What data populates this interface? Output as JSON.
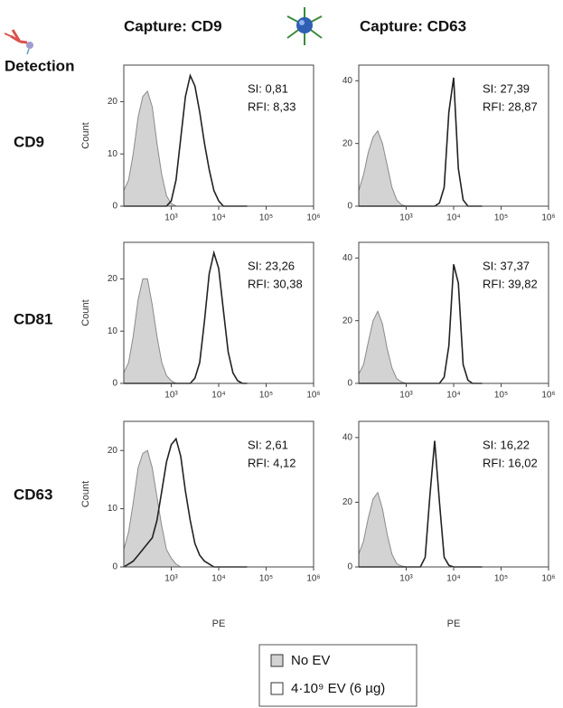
{
  "detection_label": "Detection",
  "column_titles": [
    "Capture: CD9",
    "Capture: CD63"
  ],
  "row_titles": [
    "CD9",
    "CD81",
    "CD63"
  ],
  "legend": [
    {
      "label": "No EV",
      "color": "#d3d3d3"
    },
    {
      "label": "4·10⁹ EV (6 µg)",
      "color": "#ffffff"
    }
  ],
  "chart_data": [
    {
      "type": "line",
      "ylabel": "Count",
      "xscale": "log",
      "xlim": [
        100,
        1000000
      ],
      "ylim": [
        0,
        27
      ],
      "yticks": [
        0,
        10,
        20
      ],
      "xticks": [
        {
          "value": 1000,
          "label": "10³"
        },
        {
          "value": 10000,
          "label": "10⁴"
        },
        {
          "value": 100000,
          "label": "10⁵"
        },
        {
          "value": 1000000,
          "label": "10⁶"
        }
      ],
      "annotations": [
        "SI: 0,81",
        "RFI: 8,33"
      ],
      "x": [
        100,
        126,
        158,
        200,
        251,
        316,
        398,
        501,
        631,
        794,
        1000,
        1259,
        1585,
        1995,
        2512,
        3162,
        3981,
        5012,
        6310,
        7943,
        10000,
        12589,
        15849,
        19953,
        25119,
        31623,
        39811
      ],
      "series": [
        {
          "color": "#d3d3d3",
          "area": true,
          "values": [
            3,
            5,
            10,
            17,
            21,
            22,
            19,
            12,
            6,
            2,
            0.5,
            0,
            0,
            0,
            0,
            0,
            0,
            0,
            0,
            0,
            0,
            0,
            0,
            0,
            0,
            0,
            0
          ]
        },
        {
          "color": "#222222",
          "area": false,
          "values": [
            0,
            0,
            0,
            0,
            0,
            0,
            0,
            0,
            0,
            0,
            1,
            5,
            13,
            21,
            25,
            23,
            18,
            12,
            7,
            3,
            1,
            0,
            0,
            0,
            0,
            0,
            0
          ]
        }
      ]
    },
    {
      "type": "line",
      "xscale": "log",
      "xlim": [
        100,
        1000000
      ],
      "ylim": [
        0,
        45
      ],
      "yticks": [
        0,
        20,
        40
      ],
      "xticks": [
        {
          "value": 1000,
          "label": "10³"
        },
        {
          "value": 10000,
          "label": "10⁴"
        },
        {
          "value": 100000,
          "label": "10⁵"
        },
        {
          "value": 1000000,
          "label": "10⁶"
        }
      ],
      "annotations": [
        "SI: 27,39",
        "RFI: 28,87"
      ],
      "x": [
        100,
        126,
        158,
        200,
        251,
        316,
        398,
        501,
        631,
        794,
        1000,
        1259,
        1585,
        1995,
        2512,
        3162,
        3981,
        5012,
        6310,
        7943,
        10000,
        12589,
        15849,
        19953,
        25119,
        31623,
        39811
      ],
      "series": [
        {
          "color": "#d3d3d3",
          "area": true,
          "values": [
            5,
            10,
            17,
            22,
            24,
            20,
            13,
            6,
            2,
            0.5,
            0,
            0,
            0,
            0,
            0,
            0,
            0,
            0,
            0,
            0,
            0,
            0,
            0,
            0,
            0,
            0,
            0
          ]
        },
        {
          "color": "#222222",
          "area": false,
          "values": [
            0,
            0,
            0,
            0,
            0,
            0,
            0,
            0,
            0,
            0,
            0,
            0,
            0,
            0,
            0,
            0,
            0,
            1,
            6,
            30,
            41,
            12,
            2,
            0,
            0,
            0,
            0
          ]
        }
      ]
    },
    {
      "type": "line",
      "ylabel": "Count",
      "xscale": "log",
      "xlim": [
        100,
        1000000
      ],
      "ylim": [
        0,
        27
      ],
      "yticks": [
        0,
        10,
        20
      ],
      "xticks": [
        {
          "value": 1000,
          "label": "10³"
        },
        {
          "value": 10000,
          "label": "10⁴"
        },
        {
          "value": 100000,
          "label": "10⁵"
        },
        {
          "value": 1000000,
          "label": "10⁶"
        }
      ],
      "annotations": [
        "SI: 23,26",
        "RFI: 30,38"
      ],
      "x": [
        100,
        126,
        158,
        200,
        251,
        316,
        398,
        501,
        631,
        794,
        1000,
        1259,
        1585,
        1995,
        2512,
        3162,
        3981,
        5012,
        6310,
        7943,
        10000,
        12589,
        15849,
        19953,
        25119,
        31623,
        39811
      ],
      "series": [
        {
          "color": "#d3d3d3",
          "area": true,
          "values": [
            2,
            4,
            9,
            16,
            20,
            20,
            15,
            9,
            4,
            1.5,
            0.5,
            0,
            0,
            0,
            0,
            0,
            0,
            0,
            0,
            0,
            0,
            0,
            0,
            0,
            0,
            0,
            0
          ]
        },
        {
          "color": "#222222",
          "area": false,
          "values": [
            0,
            0,
            0,
            0,
            0,
            0,
            0,
            0,
            0,
            0,
            0,
            0,
            0,
            0,
            0,
            1,
            4,
            12,
            21,
            25,
            22,
            14,
            6,
            2,
            0.5,
            0,
            0
          ]
        }
      ]
    },
    {
      "type": "line",
      "xscale": "log",
      "xlim": [
        100,
        1000000
      ],
      "ylim": [
        0,
        45
      ],
      "yticks": [
        0,
        20,
        40
      ],
      "xticks": [
        {
          "value": 1000,
          "label": "10³"
        },
        {
          "value": 10000,
          "label": "10⁴"
        },
        {
          "value": 100000,
          "label": "10⁵"
        },
        {
          "value": 1000000,
          "label": "10⁶"
        }
      ],
      "annotations": [
        "SI: 37,37",
        "RFI: 39,82"
      ],
      "x": [
        100,
        126,
        158,
        200,
        251,
        316,
        398,
        501,
        631,
        794,
        1000,
        1259,
        1585,
        1995,
        2512,
        3162,
        3981,
        5012,
        6310,
        7943,
        10000,
        12589,
        15849,
        19953,
        25119,
        31623,
        39811
      ],
      "series": [
        {
          "color": "#d3d3d3",
          "area": true,
          "values": [
            3,
            6,
            13,
            20,
            23,
            19,
            11,
            5,
            1.5,
            0.5,
            0,
            0,
            0,
            0,
            0,
            0,
            0,
            0,
            0,
            0,
            0,
            0,
            0,
            0,
            0,
            0,
            0
          ]
        },
        {
          "color": "#222222",
          "area": false,
          "values": [
            0,
            0,
            0,
            0,
            0,
            0,
            0,
            0,
            0,
            0,
            0,
            0,
            0,
            0,
            0,
            0,
            0,
            0,
            2,
            12,
            38,
            32,
            6,
            1,
            0,
            0,
            0
          ]
        }
      ]
    },
    {
      "type": "line",
      "ylabel": "Count",
      "xlabel": "PE",
      "xscale": "log",
      "xlim": [
        100,
        1000000
      ],
      "ylim": [
        0,
        25
      ],
      "yticks": [
        0,
        10,
        20
      ],
      "xticks": [
        {
          "value": 1000,
          "label": "10³"
        },
        {
          "value": 10000,
          "label": "10⁴"
        },
        {
          "value": 100000,
          "label": "10⁵"
        },
        {
          "value": 1000000,
          "label": "10⁶"
        }
      ],
      "annotations": [
        "SI: 2,61",
        "RFI: 4,12"
      ],
      "x": [
        100,
        126,
        158,
        200,
        251,
        316,
        398,
        501,
        631,
        794,
        1000,
        1259,
        1585,
        1995,
        2512,
        3162,
        3981,
        5012,
        6310,
        7943,
        10000,
        12589,
        15849,
        19953,
        25119,
        31623,
        39811
      ],
      "series": [
        {
          "color": "#d3d3d3",
          "area": true,
          "values": [
            3,
            6,
            11,
            17,
            19.5,
            20,
            17,
            12,
            7,
            3,
            1.5,
            0.5,
            0,
            0,
            0,
            0,
            0,
            0,
            0,
            0,
            0,
            0,
            0,
            0,
            0,
            0,
            0
          ]
        },
        {
          "color": "#222222",
          "area": false,
          "values": [
            0,
            0.5,
            1,
            2,
            3,
            4,
            5,
            8,
            13,
            18,
            21,
            22,
            19,
            13,
            8,
            4,
            2,
            1,
            0.5,
            0,
            0,
            0,
            0,
            0,
            0,
            0,
            0
          ]
        }
      ]
    },
    {
      "type": "line",
      "xlabel": "PE",
      "xscale": "log",
      "xlim": [
        100,
        1000000
      ],
      "ylim": [
        0,
        45
      ],
      "yticks": [
        0,
        20,
        40
      ],
      "xticks": [
        {
          "value": 1000,
          "label": "10³"
        },
        {
          "value": 10000,
          "label": "10⁴"
        },
        {
          "value": 100000,
          "label": "10⁵"
        },
        {
          "value": 1000000,
          "label": "10⁶"
        }
      ],
      "annotations": [
        "SI: 16,22",
        "RFI: 16,02"
      ],
      "x": [
        100,
        126,
        158,
        200,
        251,
        316,
        398,
        501,
        631,
        794,
        1000,
        1259,
        1585,
        1995,
        2512,
        3162,
        3981,
        5012,
        6310,
        7943,
        10000,
        12589,
        15849,
        19953,
        25119,
        31623,
        39811
      ],
      "series": [
        {
          "color": "#d3d3d3",
          "area": true,
          "values": [
            4,
            8,
            15,
            21,
            23,
            18,
            10,
            4,
            1,
            0.3,
            0,
            0,
            0,
            0,
            0,
            0,
            0,
            0,
            0,
            0,
            0,
            0,
            0,
            0,
            0,
            0,
            0
          ]
        },
        {
          "color": "#222222",
          "area": false,
          "values": [
            0,
            0,
            0,
            0,
            0,
            0,
            0,
            0,
            0,
            0,
            0,
            0,
            0,
            0,
            3,
            22,
            39,
            20,
            3,
            0.5,
            0,
            0,
            0,
            0,
            0,
            0,
            0
          ]
        }
      ]
    }
  ]
}
